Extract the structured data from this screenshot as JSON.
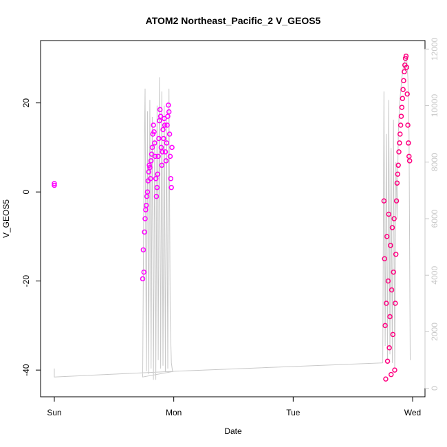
{
  "chart_data": {
    "type": "scatter",
    "title": "ATOM2 Northeast_Pacific_2 V_GEOS5",
    "xlabel": "Date",
    "ylabel": "V_GEOS5",
    "x_ticks": [
      "Sun",
      "Mon",
      "Tue",
      "Wed"
    ],
    "x_range_days": [
      0,
      3
    ],
    "ylim": [
      -46,
      34
    ],
    "y_ticks": [
      -40,
      -20,
      0,
      20
    ],
    "y2_ticks": [
      0,
      2000,
      4000,
      6000,
      8000,
      10000,
      12000
    ],
    "y2lim": [
      -300,
      12300
    ],
    "grid": false,
    "marker_colors": {
      "low_altitude": "#ff0080",
      "high_altitude": "#ff00ff"
    },
    "altitude_line_color": "#c8c8c8",
    "series": [
      {
        "role": "V_GEOS5",
        "points": [
          [
            0.0,
            1.5
          ],
          [
            0.0,
            1.9
          ],
          [
            0.74,
            -19.5
          ],
          [
            0.745,
            -13.0
          ],
          [
            0.75,
            -18.0
          ],
          [
            0.755,
            -9.0
          ],
          [
            0.76,
            -6.0
          ],
          [
            0.765,
            -4.0
          ],
          [
            0.77,
            -3.0
          ],
          [
            0.775,
            -1.0
          ],
          [
            0.78,
            0.0
          ],
          [
            0.785,
            2.5
          ],
          [
            0.79,
            4.5
          ],
          [
            0.795,
            6.0
          ],
          [
            0.8,
            5.5
          ],
          [
            0.805,
            3.0
          ],
          [
            0.81,
            7.0
          ],
          [
            0.815,
            8.5
          ],
          [
            0.82,
            10.0
          ],
          [
            0.825,
            13.0
          ],
          [
            0.83,
            15.0
          ],
          [
            0.835,
            13.5
          ],
          [
            0.84,
            11.0
          ],
          [
            0.845,
            8.0
          ],
          [
            0.85,
            3.0
          ],
          [
            0.855,
            -1.0
          ],
          [
            0.86,
            1.0
          ],
          [
            0.865,
            4.0
          ],
          [
            0.87,
            8.0
          ],
          [
            0.875,
            12.0
          ],
          [
            0.88,
            16.0
          ],
          [
            0.885,
            18.5
          ],
          [
            0.89,
            17.0
          ],
          [
            0.895,
            10.0
          ],
          [
            0.9,
            6.0
          ],
          [
            0.905,
            9.0
          ],
          [
            0.91,
            14.0
          ],
          [
            0.915,
            12.0
          ],
          [
            0.92,
            16.5
          ],
          [
            0.925,
            15.0
          ],
          [
            0.93,
            9.0
          ],
          [
            0.935,
            7.0
          ],
          [
            0.94,
            11.0
          ],
          [
            0.945,
            15.0
          ],
          [
            0.95,
            17.0
          ],
          [
            0.955,
            19.5
          ],
          [
            0.96,
            18.0
          ],
          [
            0.965,
            13.0
          ],
          [
            0.97,
            8.0
          ],
          [
            0.975,
            3.0
          ],
          [
            0.98,
            1.0
          ],
          [
            0.985,
            10.0
          ],
          [
            2.76,
            -2.0
          ],
          [
            2.765,
            -15.0
          ],
          [
            2.77,
            -30.0
          ],
          [
            2.775,
            -42.0
          ],
          [
            2.78,
            -25.0
          ],
          [
            2.785,
            -10.0
          ],
          [
            2.79,
            -38.0
          ],
          [
            2.795,
            -20.0
          ],
          [
            2.8,
            -5.0
          ],
          [
            2.805,
            -35.0
          ],
          [
            2.81,
            -28.0
          ],
          [
            2.815,
            -12.0
          ],
          [
            2.82,
            -41.0
          ],
          [
            2.825,
            -22.0
          ],
          [
            2.83,
            -8.0
          ],
          [
            2.835,
            -32.0
          ],
          [
            2.84,
            -18.0
          ],
          [
            2.845,
            -6.0
          ],
          [
            2.85,
            -40.0
          ],
          [
            2.855,
            -25.0
          ],
          [
            2.86,
            -14.0
          ],
          [
            2.865,
            -2.0
          ],
          [
            2.87,
            2.0
          ],
          [
            2.875,
            4.0
          ],
          [
            2.88,
            6.0
          ],
          [
            2.885,
            9.0
          ],
          [
            2.89,
            11.0
          ],
          [
            2.895,
            13.0
          ],
          [
            2.9,
            15.0
          ],
          [
            2.905,
            17.0
          ],
          [
            2.91,
            19.0
          ],
          [
            2.915,
            21.0
          ],
          [
            2.92,
            23.0
          ],
          [
            2.925,
            25.0
          ],
          [
            2.93,
            27.0
          ],
          [
            2.935,
            28.5
          ],
          [
            2.94,
            30.0
          ],
          [
            2.945,
            30.5
          ],
          [
            2.95,
            28.0
          ],
          [
            2.955,
            22.0
          ],
          [
            2.96,
            15.0
          ],
          [
            2.965,
            11.0
          ],
          [
            2.97,
            8.0
          ],
          [
            2.975,
            7.0
          ]
        ]
      },
      {
        "role": "altitude (right axis)",
        "points": [
          [
            0.0,
            700
          ],
          [
            0.0,
            400
          ],
          [
            1.0,
            600
          ],
          [
            0.74,
            400
          ],
          [
            0.75,
            7500
          ],
          [
            0.76,
            10600
          ],
          [
            0.77,
            600
          ],
          [
            0.78,
            9800
          ],
          [
            0.79,
            500
          ],
          [
            0.8,
            10200
          ],
          [
            0.81,
            700
          ],
          [
            0.82,
            9600
          ],
          [
            0.83,
            300
          ],
          [
            0.84,
            8800
          ],
          [
            0.85,
            300
          ],
          [
            0.86,
            10000
          ],
          [
            0.87,
            1000
          ],
          [
            0.88,
            11000
          ],
          [
            0.89,
            700
          ],
          [
            0.9,
            10500
          ],
          [
            0.91,
            800
          ],
          [
            0.92,
            10000
          ],
          [
            0.93,
            600
          ],
          [
            0.94,
            9500
          ],
          [
            0.95,
            700
          ],
          [
            0.96,
            10600
          ],
          [
            0.97,
            2500
          ],
          [
            0.98,
            900
          ],
          [
            0.99,
            600
          ],
          [
            2.75,
            900
          ],
          [
            2.76,
            10500
          ],
          [
            2.77,
            1500
          ],
          [
            2.78,
            9000
          ],
          [
            2.79,
            1000
          ],
          [
            2.8,
            10200
          ],
          [
            2.81,
            1200
          ],
          [
            2.82,
            8500
          ],
          [
            2.83,
            900
          ],
          [
            2.84,
            9500
          ],
          [
            2.85,
            700
          ],
          [
            2.86,
            8000
          ],
          [
            2.87,
            6000
          ],
          [
            2.88,
            9000
          ],
          [
            2.89,
            10000
          ],
          [
            2.9,
            10500
          ],
          [
            2.91,
            11000
          ],
          [
            2.92,
            11300
          ],
          [
            2.93,
            11500
          ],
          [
            2.94,
            11600
          ],
          [
            2.95,
            11700
          ],
          [
            2.96,
            11000
          ],
          [
            2.97,
            9000
          ],
          [
            2.98,
            1000
          ]
        ]
      }
    ]
  }
}
